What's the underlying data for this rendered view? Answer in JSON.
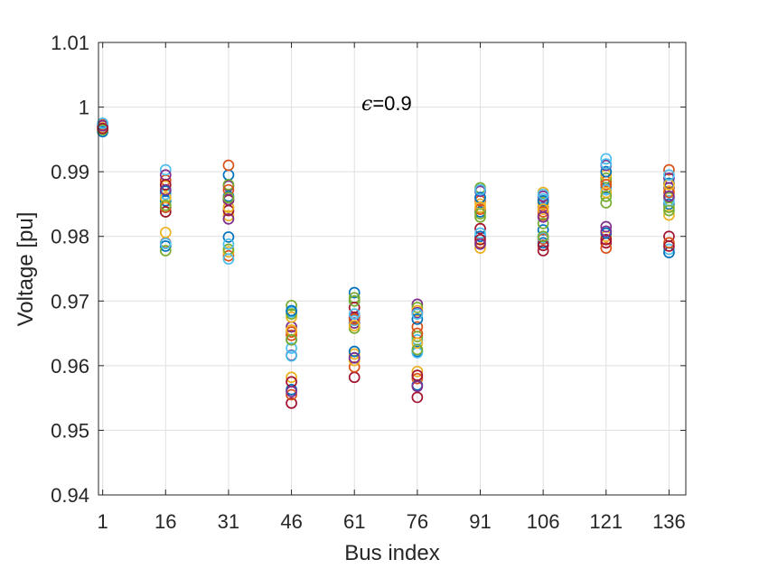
{
  "chart_data": {
    "type": "scatter",
    "xlabel": "Bus index",
    "ylabel": "Voltage [pu]",
    "annotation": {
      "symbol": "ϵ",
      "text": "=0.9"
    },
    "grid": true,
    "marker": "open-circle",
    "ylim": [
      0.94,
      1.01
    ],
    "yticks": [
      0.94,
      0.95,
      0.96,
      0.97,
      0.98,
      0.99,
      1,
      1.01
    ],
    "ytick_labels": [
      "0.94",
      "0.95",
      "0.96",
      "0.97",
      "0.98",
      "0.99",
      "1",
      "1.01"
    ],
    "xticks": [
      1,
      16,
      31,
      46,
      61,
      76,
      91,
      106,
      121,
      136
    ],
    "xtick_labels": [
      "1",
      "16",
      "31",
      "46",
      "61",
      "76",
      "91",
      "106",
      "121",
      "136"
    ],
    "series_colors": [
      "#0072BD",
      "#D95319",
      "#EDB120",
      "#7E2F8E",
      "#77AC30",
      "#4DBEEE",
      "#A2142F"
    ],
    "points": [
      {
        "x": 1,
        "values": [
          0.9962,
          0.9973,
          0.9968,
          0.9971,
          0.9965,
          0.9975,
          0.9967
        ]
      },
      {
        "x": 16,
        "values": [
          0.9855,
          0.9887,
          0.9878,
          0.9845,
          0.9838,
          0.9903,
          0.9838,
          0.9785,
          0.979,
          0.9806,
          0.9895,
          0.9778,
          0.9865,
          0.988,
          0.987,
          0.9845,
          0.986,
          0.9872,
          0.9848,
          0.9789
        ]
      },
      {
        "x": 31,
        "values": [
          0.9895,
          0.991,
          0.9832,
          0.9878,
          0.988,
          0.9845,
          0.9856,
          0.9799,
          0.977,
          0.9776,
          0.9827,
          0.978,
          0.9765,
          0.984,
          0.9862,
          0.9872,
          0.9845,
          0.9857,
          0.986,
          0.9788
        ]
      },
      {
        "x": 46,
        "values": [
          0.964,
          0.9647,
          0.9582,
          0.966,
          0.9693,
          0.9683,
          0.9542,
          0.9563,
          0.9555,
          0.9675,
          0.9616,
          0.968,
          0.9627,
          0.9575,
          0.9685,
          0.9652,
          0.9655,
          0.956,
          0.964,
          0.9615
        ]
      },
      {
        "x": 61,
        "values": [
          0.9713,
          0.9674,
          0.9618,
          0.9666,
          0.9658,
          0.97,
          0.9582,
          0.9612,
          0.9598,
          0.9608,
          0.9675,
          0.9705,
          0.967,
          0.969,
          0.9622,
          0.9672,
          0.9662,
          0.9612,
          0.97,
          0.968
        ]
      },
      {
        "x": 76,
        "values": [
          0.9622,
          0.966,
          0.9591,
          0.9695,
          0.969,
          0.964,
          0.9551,
          0.957,
          0.958,
          0.9685,
          0.9682,
          0.9645,
          0.962,
          0.9585,
          0.9672,
          0.965,
          0.9635,
          0.9568,
          0.9625,
          0.968
        ]
      },
      {
        "x": 91,
        "values": [
          0.9838,
          0.9855,
          0.9782,
          0.987,
          0.9875,
          0.986,
          0.9812,
          0.98,
          0.979,
          0.985,
          0.987,
          0.983,
          0.9805,
          0.9795,
          0.986,
          0.9842,
          0.9845,
          0.9788,
          0.9835,
          0.9872
        ]
      },
      {
        "x": 106,
        "values": [
          0.979,
          0.9833,
          0.9868,
          0.9845,
          0.9852,
          0.9858,
          0.9778,
          0.981,
          0.9796,
          0.985,
          0.9862,
          0.982,
          0.9798,
          0.9786,
          0.9855,
          0.9838,
          0.9842,
          0.983,
          0.98,
          0.9865
        ]
      },
      {
        "x": 121,
        "values": [
          0.9875,
          0.9885,
          0.98,
          0.9815,
          0.989,
          0.992,
          0.979,
          0.9805,
          0.9782,
          0.9895,
          0.991,
          0.9852,
          0.9872,
          0.9795,
          0.99,
          0.988,
          0.9868,
          0.9808,
          0.9862,
          0.9912
        ]
      },
      {
        "x": 136,
        "values": [
          0.985,
          0.9903,
          0.9833,
          0.9875,
          0.986,
          0.978,
          0.98,
          0.9775,
          0.979,
          0.987,
          0.989,
          0.9845,
          0.9855,
          0.9785,
          0.9882,
          0.9868,
          0.988,
          0.9862,
          0.984,
          0.9895
        ]
      }
    ]
  }
}
